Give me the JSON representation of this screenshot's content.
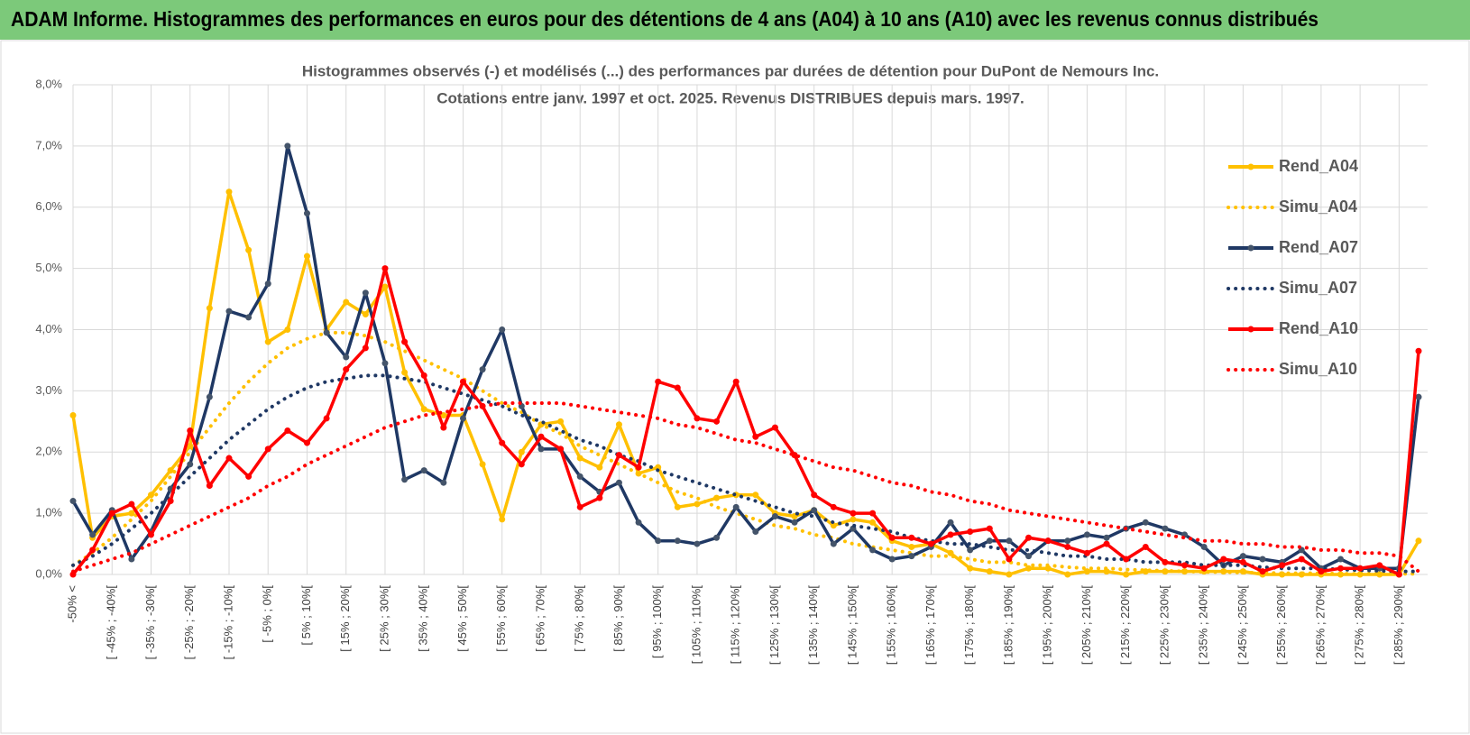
{
  "header": {
    "title": "ADAM Informe. Histogrammes des performances en euros pour des détentions de 4 ans (A04) à 10 ans (A10) avec les revenus connus distribués"
  },
  "chart_data": {
    "type": "line",
    "title": "Histogrammes observés (-) et modélisés (...) des performances par durées de détention pour DuPont de Nemours Inc.",
    "subtitle": "Cotations entre janv. 1997 et oct. 2025.  Revenus DISTRIBUES depuis mars. 1997.",
    "categories": [
      "-50% <",
      null,
      "[ -45% ; -40%[",
      null,
      "[ -35% ; -30%[",
      null,
      "[ -25% ; -20%[",
      null,
      "[ -15% ; -10%[",
      null,
      "[ -5% ; 0%[",
      null,
      "[ 5% ; 10%[",
      null,
      "[ 15% ; 20%[",
      null,
      "[ 25% ; 30%[",
      null,
      "[ 35% ; 40%[",
      null,
      "[ 45% ; 50%[",
      null,
      "[ 55% ; 60%[",
      null,
      "[ 65% ; 70%[",
      null,
      "[ 75% ; 80%[",
      null,
      "[ 85% ; 90%[",
      null,
      "[ 95% ; 100%[",
      null,
      "[ 105% ; 110%[",
      null,
      "[ 115% ; 120%[",
      null,
      "[ 125% ; 130%[",
      null,
      "[ 135% ; 140%[",
      null,
      "[ 145% ; 150%[",
      null,
      "[ 155% ; 160%[",
      null,
      "[ 165% ; 170%[",
      null,
      "[ 175% ; 180%[",
      null,
      "[ 185% ; 190%[",
      null,
      "[ 195% ; 200%[",
      null,
      "[ 205% ; 210%[",
      null,
      "[ 215% ; 220%[",
      null,
      "[ 225% ; 230%[",
      null,
      "[ 235% ; 240%[",
      null,
      "[ 245% ; 250%[",
      null,
      "[ 255% ; 260%[",
      null,
      "[ 265% ; 270%[",
      null,
      "[ 275% ; 280%[",
      null,
      "[ 285% ; 290%[",
      null
    ],
    "ylim": [
      0,
      8
    ],
    "yticks": [
      {
        "value": 0,
        "label": "0,0%"
      },
      {
        "value": 1,
        "label": "1,0%"
      },
      {
        "value": 2,
        "label": "2,0%"
      },
      {
        "value": 3,
        "label": "3,0%"
      },
      {
        "value": 4,
        "label": "4,0%"
      },
      {
        "value": 5,
        "label": "5,0%"
      },
      {
        "value": 6,
        "label": "6,0%"
      },
      {
        "value": 7,
        "label": "7,0%"
      },
      {
        "value": 8,
        "label": "8,0%"
      }
    ],
    "grid": true,
    "legend": "right",
    "series": [
      {
        "name": "Rend_A04",
        "color": "#FFC000",
        "style": "solid",
        "markers": true,
        "values": [
          2.6,
          0.6,
          0.95,
          1.0,
          1.3,
          1.7,
          2.1,
          4.35,
          6.25,
          5.3,
          3.8,
          4.0,
          5.2,
          4.0,
          4.45,
          4.25,
          4.7,
          3.3,
          2.7,
          2.6,
          2.6,
          1.8,
          0.9,
          2.0,
          2.45,
          2.5,
          1.9,
          1.75,
          2.45,
          1.65,
          1.75,
          1.1,
          1.15,
          1.25,
          1.3,
          1.3,
          1.0,
          0.95,
          1.05,
          0.8,
          0.9,
          0.85,
          0.55,
          0.45,
          0.5,
          0.35,
          0.1,
          0.05,
          0.0,
          0.1,
          0.1,
          0.0,
          0.05,
          0.05,
          0.0,
          0.05,
          0.05,
          0.05,
          0.05,
          0.05,
          0.05,
          0.0,
          0.0,
          0.0,
          0.0,
          0.0,
          0.0,
          0.0,
          0.0,
          0.55
        ]
      },
      {
        "name": "Simu_A04",
        "color": "#FFC000",
        "style": "dotted",
        "markers": false,
        "values": [
          0.15,
          0.35,
          0.6,
          0.9,
          1.2,
          1.6,
          2.0,
          2.4,
          2.8,
          3.15,
          3.45,
          3.7,
          3.85,
          3.95,
          3.95,
          3.9,
          3.8,
          3.65,
          3.5,
          3.35,
          3.2,
          3.0,
          2.8,
          2.65,
          2.45,
          2.3,
          2.1,
          1.95,
          1.8,
          1.65,
          1.5,
          1.35,
          1.25,
          1.1,
          1.0,
          0.9,
          0.8,
          0.75,
          0.65,
          0.6,
          0.5,
          0.45,
          0.4,
          0.35,
          0.3,
          0.3,
          0.25,
          0.2,
          0.2,
          0.15,
          0.15,
          0.12,
          0.1,
          0.1,
          0.08,
          0.07,
          0.06,
          0.05,
          0.04,
          0.04,
          0.03,
          0.03,
          0.02,
          0.02,
          0.02,
          0.01,
          0.01,
          0.01,
          0.01,
          0.01
        ]
      },
      {
        "name": "Rend_A07",
        "color": "#1F3864",
        "style": "solid",
        "markers": true,
        "values": [
          1.2,
          0.65,
          1.05,
          0.25,
          0.7,
          1.4,
          1.8,
          2.9,
          4.3,
          4.2,
          4.75,
          7.0,
          5.9,
          3.95,
          3.55,
          4.6,
          3.45,
          1.55,
          1.7,
          1.5,
          2.55,
          3.35,
          4.0,
          2.75,
          2.05,
          2.05,
          1.6,
          1.35,
          1.5,
          0.85,
          0.55,
          0.55,
          0.5,
          0.6,
          1.1,
          0.7,
          0.95,
          0.85,
          1.05,
          0.5,
          0.75,
          0.4,
          0.25,
          0.3,
          0.45,
          0.85,
          0.4,
          0.55,
          0.55,
          0.3,
          0.55,
          0.55,
          0.65,
          0.6,
          0.75,
          0.85,
          0.75,
          0.65,
          0.45,
          0.15,
          0.3,
          0.25,
          0.2,
          0.4,
          0.1,
          0.25,
          0.1,
          0.1,
          0.1,
          2.9
        ]
      },
      {
        "name": "Simu_A07",
        "color": "#1F3864",
        "style": "dotted",
        "markers": false,
        "values": [
          0.15,
          0.3,
          0.5,
          0.75,
          1.0,
          1.3,
          1.6,
          1.9,
          2.2,
          2.45,
          2.7,
          2.9,
          3.05,
          3.15,
          3.2,
          3.25,
          3.25,
          3.2,
          3.15,
          3.05,
          2.95,
          2.85,
          2.75,
          2.6,
          2.5,
          2.35,
          2.2,
          2.1,
          1.95,
          1.85,
          1.7,
          1.6,
          1.5,
          1.4,
          1.3,
          1.2,
          1.1,
          1.0,
          0.95,
          0.85,
          0.8,
          0.75,
          0.7,
          0.6,
          0.55,
          0.5,
          0.5,
          0.45,
          0.4,
          0.4,
          0.35,
          0.3,
          0.3,
          0.25,
          0.25,
          0.2,
          0.2,
          0.2,
          0.15,
          0.15,
          0.15,
          0.12,
          0.1,
          0.1,
          0.1,
          0.08,
          0.07,
          0.06,
          0.05,
          0.05
        ]
      },
      {
        "name": "Rend_A10",
        "color": "#FF0000",
        "style": "solid",
        "markers": true,
        "values": [
          0.0,
          0.4,
          1.0,
          1.15,
          0.65,
          1.2,
          2.35,
          1.45,
          1.9,
          1.6,
          2.05,
          2.35,
          2.15,
          2.55,
          3.35,
          3.7,
          5.0,
          3.8,
          3.25,
          2.4,
          3.15,
          2.75,
          2.15,
          1.8,
          2.25,
          2.05,
          1.1,
          1.25,
          1.95,
          1.75,
          3.15,
          3.05,
          2.55,
          2.5,
          3.15,
          2.25,
          2.4,
          1.95,
          1.3,
          1.1,
          1.0,
          1.0,
          0.6,
          0.6,
          0.5,
          0.65,
          0.7,
          0.75,
          0.25,
          0.6,
          0.55,
          0.45,
          0.35,
          0.5,
          0.25,
          0.45,
          0.2,
          0.15,
          0.1,
          0.25,
          0.2,
          0.05,
          0.15,
          0.25,
          0.05,
          0.1,
          0.1,
          0.15,
          0.0,
          3.65
        ]
      },
      {
        "name": "Simu_A10",
        "color": "#FF0000",
        "style": "dotted",
        "markers": false,
        "values": [
          0.05,
          0.15,
          0.25,
          0.35,
          0.5,
          0.65,
          0.8,
          0.95,
          1.1,
          1.25,
          1.45,
          1.6,
          1.8,
          1.95,
          2.1,
          2.25,
          2.4,
          2.5,
          2.6,
          2.65,
          2.7,
          2.75,
          2.8,
          2.8,
          2.8,
          2.8,
          2.75,
          2.7,
          2.65,
          2.6,
          2.55,
          2.45,
          2.4,
          2.3,
          2.2,
          2.15,
          2.05,
          1.95,
          1.85,
          1.75,
          1.7,
          1.6,
          1.5,
          1.45,
          1.35,
          1.3,
          1.2,
          1.15,
          1.05,
          1.0,
          0.95,
          0.9,
          0.85,
          0.8,
          0.75,
          0.7,
          0.65,
          0.6,
          0.55,
          0.55,
          0.5,
          0.5,
          0.45,
          0.45,
          0.4,
          0.4,
          0.35,
          0.35,
          0.3,
          0.05
        ]
      }
    ]
  }
}
